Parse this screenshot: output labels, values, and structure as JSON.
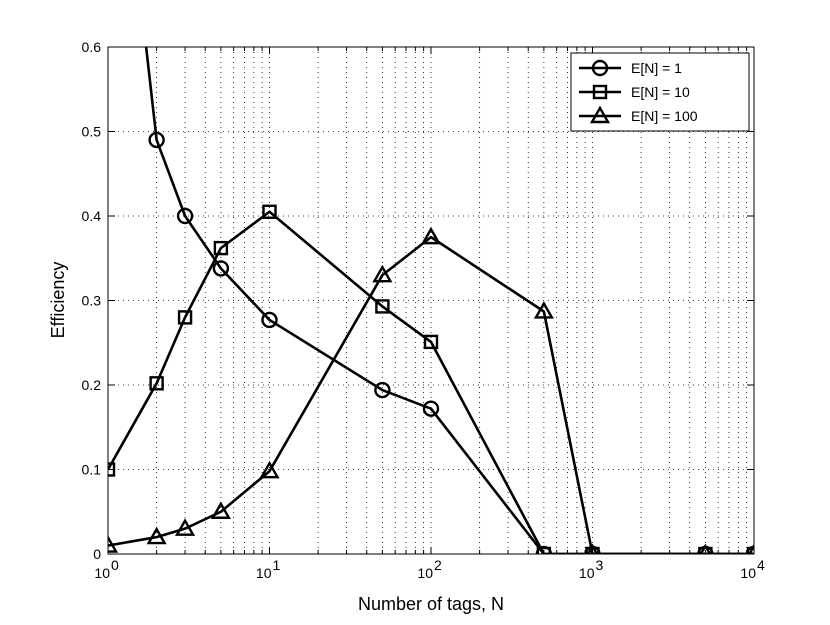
{
  "chart_data": {
    "type": "line",
    "title": "",
    "xlabel": "Number of tags, N",
    "ylabel": "Efficiency",
    "x_scale": "log",
    "xlim": [
      1,
      10000
    ],
    "ylim": [
      0,
      0.6
    ],
    "grid": true,
    "legend_position": "top-right",
    "x_ticks": [
      {
        "value": 1,
        "base": "10",
        "exp": "0"
      },
      {
        "value": 10,
        "base": "10",
        "exp": "1"
      },
      {
        "value": 100,
        "base": "10",
        "exp": "2"
      },
      {
        "value": 1000,
        "base": "10",
        "exp": "3"
      },
      {
        "value": 10000,
        "base": "10",
        "exp": "4"
      }
    ],
    "y_ticks": [
      {
        "value": 0,
        "label": "0"
      },
      {
        "value": 0.1,
        "label": "0.1"
      },
      {
        "value": 0.2,
        "label": "0.2"
      },
      {
        "value": 0.3,
        "label": "0.3"
      },
      {
        "value": 0.4,
        "label": "0.4"
      },
      {
        "value": 0.5,
        "label": "0.5"
      },
      {
        "value": 0.6,
        "label": "0.6"
      }
    ],
    "series": [
      {
        "name": "E[N] = 1",
        "marker": "circle",
        "color": "#000000",
        "x": [
          1,
          2,
          3,
          5,
          10,
          50,
          100,
          500,
          1000,
          5000,
          10000
        ],
        "y": [
          1.0,
          0.49,
          0.4,
          0.338,
          0.277,
          0.194,
          0.172,
          0.0,
          0.0,
          0.0,
          0.0
        ],
        "marker_x": [
          2,
          3,
          5,
          10,
          50,
          100,
          500,
          1000,
          5000,
          10000
        ],
        "marker_y": [
          0.49,
          0.4,
          0.338,
          0.277,
          0.194,
          0.172,
          0.0,
          0.0,
          0.0,
          0.0
        ]
      },
      {
        "name": "E[N] = 10",
        "marker": "square",
        "color": "#000000",
        "x": [
          1,
          2,
          3,
          5,
          10,
          50,
          100,
          500,
          1000,
          5000,
          10000
        ],
        "y": [
          0.1,
          0.202,
          0.28,
          0.362,
          0.405,
          0.293,
          0.251,
          0.0,
          0.0,
          0.0,
          0.0
        ],
        "marker_x": [
          1,
          2,
          3,
          5,
          10,
          50,
          100,
          500,
          1000,
          5000,
          10000
        ],
        "marker_y": [
          0.1,
          0.202,
          0.28,
          0.362,
          0.405,
          0.293,
          0.251,
          0.0,
          0.0,
          0.0,
          0.0
        ]
      },
      {
        "name": "E[N] = 100",
        "marker": "triangle",
        "color": "#000000",
        "x": [
          1,
          2,
          3,
          5,
          10,
          50,
          100,
          500,
          1000,
          5000,
          10000
        ],
        "y": [
          0.01,
          0.02,
          0.03,
          0.05,
          0.098,
          0.33,
          0.375,
          0.287,
          0.0,
          0.0,
          0.0
        ],
        "marker_x": [
          1,
          2,
          3,
          5,
          10,
          50,
          100,
          500,
          1000,
          5000,
          10000
        ],
        "marker_y": [
          0.01,
          0.02,
          0.03,
          0.05,
          0.098,
          0.33,
          0.375,
          0.287,
          0.0,
          0.0,
          0.0
        ]
      }
    ]
  }
}
